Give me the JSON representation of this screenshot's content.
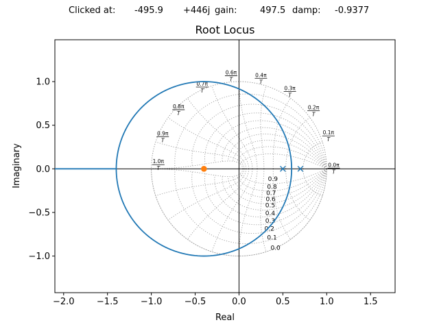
{
  "status": {
    "clicked_label": "Clicked at:",
    "real": "-495.9",
    "imag": "+446j",
    "gain_label": "gain:",
    "gain": "497.5",
    "damp_label": "damp:",
    "damp": "-0.9377"
  },
  "chart_data": {
    "type": "scatter",
    "title": "Root Locus",
    "xlabel": "Real",
    "ylabel": "Imaginary",
    "xlim": [
      -2.1,
      1.78
    ],
    "ylim": [
      -1.42,
      1.48
    ],
    "xticks": [
      -2.0,
      -1.5,
      -1.0,
      -0.5,
      0.0,
      0.5,
      1.0,
      1.5
    ],
    "xtick_labels": [
      "−2.0",
      "−1.5",
      "−1.0",
      "−0.5",
      "0.0",
      "0.5",
      "1.0",
      "1.5"
    ],
    "yticks": [
      -1.0,
      -0.5,
      0.0,
      0.5,
      1.0
    ],
    "ytick_labels": [
      "−1.0",
      "−0.5",
      "0.0",
      "0.5",
      "1.0"
    ],
    "locus": {
      "color": "#1f77b4",
      "circle_center": [
        -0.4,
        0.0
      ],
      "circle_radius": 1.0,
      "real_axis_segment": [
        -2.1,
        -1.4
      ]
    },
    "poles": [
      [
        0.5,
        0.0
      ],
      [
        0.7,
        0.0
      ]
    ],
    "zeros": [],
    "clicked_point": {
      "x": -0.4,
      "y": 0.0,
      "color": "#ff7f0e"
    },
    "zgrid": {
      "damping_ratios": [
        "0.9",
        "0.8",
        "0.7",
        "0.6",
        "0.5",
        "0.4",
        "0.3",
        "0.2",
        "0.1",
        "0.0"
      ],
      "natural_freq_labels": [
        "0.0π",
        "0.1π",
        "0.2π",
        "0.3π",
        "0.4π",
        "0.6π",
        "0.7π",
        "0.8π",
        "0.9π",
        "1.0π"
      ],
      "natural_freq_denominator": "T"
    }
  }
}
